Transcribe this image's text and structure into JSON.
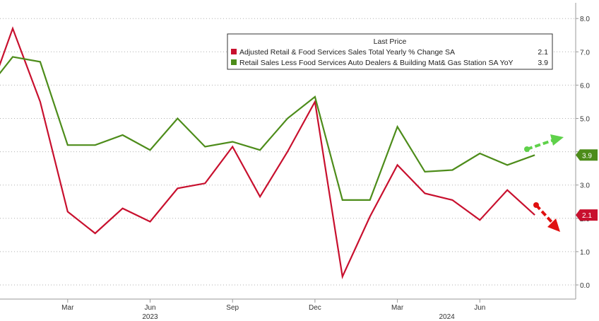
{
  "chart_data": {
    "type": "line",
    "title": "",
    "xlabel": "",
    "ylabel": "",
    "ylim": [
      -0.3,
      8.4
    ],
    "y_ticks": [
      "0.0",
      "1.0",
      "2.0",
      "3.0",
      "4.0",
      "5.0",
      "6.0",
      "7.0",
      "8.0"
    ],
    "x_ticks": [
      "Dec",
      "Mar",
      "Jun",
      "Sep",
      "Dec",
      "Mar",
      "Jun"
    ],
    "x_tick_months": [
      -1,
      2,
      5,
      8,
      11,
      14,
      17
    ],
    "year_labels": [
      "2023",
      "2024"
    ],
    "year_label_months": [
      5,
      15.8
    ],
    "grid": "horizontal dotted",
    "legend": {
      "title": "Last Price",
      "position": "top-right",
      "entries": [
        {
          "label": "Adjusted Retail & Food Services Sales Total Yearly % Change SA",
          "value": "2.1",
          "color": "#c8102e"
        },
        {
          "label": "Retail Sales Less Food Services Auto Dealers & Building Mat& Gas Station SA YoY",
          "value": "3.9",
          "color": "#4d8c1a"
        }
      ]
    },
    "x_months": [
      -1.45,
      -1,
      0,
      1,
      2,
      3,
      4,
      5,
      6,
      7,
      8,
      9,
      10,
      11,
      12,
      13,
      14,
      15,
      16,
      17,
      18,
      19
    ],
    "series": [
      {
        "name": "Adjusted Retail & Food Services Sales Total Yearly % Change SA",
        "color": "#c8102e",
        "values": [
          5.5,
          5.4,
          7.7,
          5.5,
          2.2,
          1.55,
          2.3,
          1.9,
          2.9,
          3.05,
          4.15,
          2.65,
          4.0,
          5.5,
          0.25,
          2.05,
          3.6,
          2.75,
          2.55,
          1.95,
          2.85,
          2.1
        ]
      },
      {
        "name": "Retail Sales Less Food Services Auto Dealers & Building Mat& Gas Station SA YoY",
        "color": "#4d8c1a",
        "values": [
          5.5,
          5.8,
          6.85,
          6.7,
          4.2,
          4.2,
          4.5,
          4.05,
          5.0,
          4.15,
          4.3,
          4.05,
          5.0,
          5.65,
          2.55,
          2.55,
          4.75,
          3.4,
          3.45,
          3.95,
          3.6,
          3.9
        ]
      }
    ],
    "last_value_tags": [
      {
        "label": "3.9",
        "value": 3.9,
        "color": "#4d8c1a"
      },
      {
        "label": "2.1",
        "value": 2.1,
        "color": "#c8102e"
      }
    ]
  }
}
